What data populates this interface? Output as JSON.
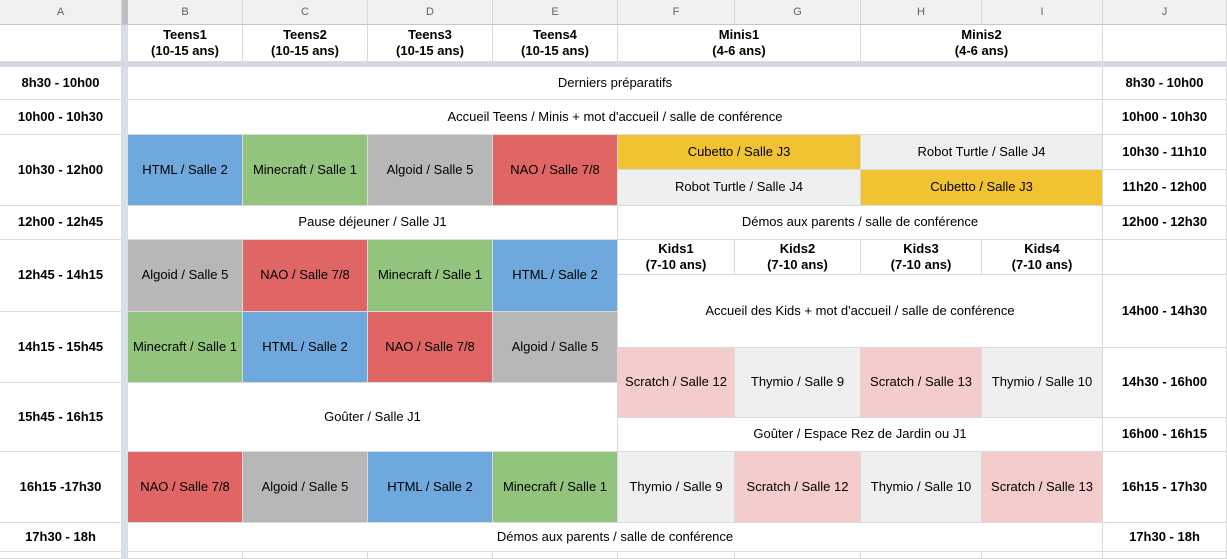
{
  "app": {
    "title": "Planning ateliers — feuille de calcul"
  },
  "column_headers": [
    "A",
    "B",
    "C",
    "D",
    "E",
    "F",
    "G",
    "H",
    "I",
    "J"
  ],
  "palette": {
    "blue": "#6fa8dc",
    "green": "#93c47d",
    "gray": "#b7b7b7",
    "red": "#e06666",
    "yellow": "#f1c232",
    "lightgray": "#efefef",
    "pink": "#f4cccc",
    "white": "#ffffff"
  },
  "cells": [
    {
      "n": "corner-cell-a1",
      "t": "",
      "col": "A",
      "row": 1,
      "rs": 1
    },
    {
      "n": "group-header-teens1",
      "t": "Teens1\n(10-15 ans)",
      "col": "B",
      "row": 1,
      "bold": true
    },
    {
      "n": "group-header-teens2",
      "t": "Teens2\n(10-15 ans)",
      "col": "C",
      "row": 1,
      "bold": true
    },
    {
      "n": "group-header-teens3",
      "t": "Teens3\n(10-15 ans)",
      "col": "D",
      "row": 1,
      "bold": true
    },
    {
      "n": "group-header-teens4",
      "t": "Teens4\n(10-15 ans)",
      "col": "E",
      "row": 1,
      "bold": true
    },
    {
      "n": "group-header-minis1",
      "t": "Minis1\n(4-6 ans)",
      "col": "F",
      "cs": 2,
      "row": 1,
      "bold": true
    },
    {
      "n": "group-header-minis2",
      "t": "Minis2\n(4-6 ans)",
      "col": "H",
      "cs": 2,
      "row": 1,
      "bold": true
    },
    {
      "n": "empty-header-j",
      "t": "",
      "col": "J",
      "row": 1
    },
    {
      "n": "time-left-0830-1000",
      "t": "8h30 - 10h00",
      "col": "A",
      "row": 2,
      "bold": true
    },
    {
      "n": "time-left-1000-1030",
      "t": "10h00 - 10h30",
      "col": "A",
      "row": 3,
      "bold": true
    },
    {
      "n": "time-left-1030-1200",
      "t": "10h30 - 12h00",
      "col": "A",
      "row": 4,
      "rs": 2,
      "bold": true
    },
    {
      "n": "time-left-1200-1245",
      "t": "12h00 - 12h45",
      "col": "A",
      "row": 6,
      "bold": true
    },
    {
      "n": "time-left-1245-1415",
      "t": "12h45 - 14h15",
      "col": "A",
      "row": 7,
      "rs": 2,
      "bold": true
    },
    {
      "n": "time-left-1415-1545",
      "t": "14h15 - 15h45",
      "col": "A",
      "row": 9,
      "rs": 2,
      "bold": true
    },
    {
      "n": "time-left-1545-1615",
      "t": "15h45 - 16h15",
      "col": "A",
      "row": 11,
      "rs": 2,
      "bold": true
    },
    {
      "n": "time-left-1615-1730",
      "t": "16h15 -17h30",
      "col": "A",
      "row": 13,
      "rs": 2,
      "bold": true
    },
    {
      "n": "time-left-1730-18",
      "t": "17h30 - 18h",
      "col": "A",
      "row": 15,
      "bold": true
    },
    {
      "n": "time-right-0830-1000",
      "t": "8h30 - 10h00",
      "col": "J",
      "row": 2,
      "bold": true
    },
    {
      "n": "time-right-1000-1030",
      "t": "10h00 - 10h30",
      "col": "J",
      "row": 3,
      "bold": true
    },
    {
      "n": "time-right-1030-1110",
      "t": "10h30 - 11h10",
      "col": "J",
      "row": 4,
      "bold": true
    },
    {
      "n": "time-right-1120-1200",
      "t": "11h20 - 12h00",
      "col": "J",
      "row": 5,
      "bold": true
    },
    {
      "n": "time-right-1200-1230",
      "t": "12h00 - 12h30",
      "col": "J",
      "row": 6,
      "bold": true
    },
    {
      "n": "empty-cell-j-kids",
      "t": "",
      "col": "J",
      "row": 7
    },
    {
      "n": "time-right-1400-1430",
      "t": "14h00 - 14h30",
      "col": "J",
      "row": 8,
      "rs": 2,
      "bold": true
    },
    {
      "n": "time-right-1430-1600",
      "t": "14h30 - 16h00",
      "col": "J",
      "row": 10,
      "rs": 2,
      "bold": true
    },
    {
      "n": "time-right-1600-1615",
      "t": "16h00 - 16h15",
      "col": "J",
      "row": 12,
      "bold": true
    },
    {
      "n": "time-right-1615-1730",
      "t": "16h15 - 17h30",
      "col": "J",
      "row": 13,
      "rs": 2,
      "bold": true
    },
    {
      "n": "time-right-1730-18",
      "t": "17h30 - 18h",
      "col": "J",
      "row": 15,
      "bold": true
    },
    {
      "n": "event-derniers-preparatifs",
      "t": "Derniers préparatifs",
      "col": "B",
      "cs": 8,
      "row": 2
    },
    {
      "n": "event-accueil-teens-minis",
      "t": "Accueil Teens / Minis + mot d'accueil / salle de conférence",
      "col": "B",
      "cs": 8,
      "row": 3
    },
    {
      "n": "event-html-salle2-teens1",
      "t": "HTML / Salle 2",
      "col": "B",
      "row": 4,
      "rs": 2,
      "bg": "blue"
    },
    {
      "n": "event-minecraft-salle1-teens2",
      "t": "Minecraft / Salle 1",
      "col": "C",
      "row": 4,
      "rs": 2,
      "bg": "green"
    },
    {
      "n": "event-algoid-salle5-teens3",
      "t": "Algoid / Salle 5",
      "col": "D",
      "row": 4,
      "rs": 2,
      "bg": "gray"
    },
    {
      "n": "event-nao-salle78-teens4",
      "t": "NAO / Salle 7/8",
      "col": "E",
      "row": 4,
      "rs": 2,
      "bg": "red"
    },
    {
      "n": "event-cubetto-j3-minis1",
      "t": "Cubetto / Salle J3",
      "col": "F",
      "cs": 2,
      "row": 4,
      "bg": "yellow"
    },
    {
      "n": "event-robot-turtle-j4-minis2",
      "t": "Robot Turtle / Salle J4",
      "col": "H",
      "cs": 2,
      "row": 4,
      "bg": "lightgray"
    },
    {
      "n": "event-robot-turtle-j4-minis1",
      "t": "Robot Turtle / Salle J4",
      "col": "F",
      "cs": 2,
      "row": 5,
      "bg": "lightgray"
    },
    {
      "n": "event-cubetto-j3-minis2",
      "t": "Cubetto / Salle J3",
      "col": "H",
      "cs": 2,
      "row": 5,
      "bg": "yellow"
    },
    {
      "n": "event-pause-dejeuner",
      "t": "Pause déjeuner / Salle J1",
      "col": "B",
      "cs": 4,
      "row": 6
    },
    {
      "n": "event-demos-parents-midi",
      "t": "Démos aux parents / salle de conférence",
      "col": "F",
      "cs": 4,
      "row": 6
    },
    {
      "n": "group-header-kids1",
      "t": "Kids1\n(7-10 ans)",
      "col": "F",
      "row": 7,
      "bold": true
    },
    {
      "n": "group-header-kids2",
      "t": "Kids2\n(7-10 ans)",
      "col": "G",
      "row": 7,
      "bold": true
    },
    {
      "n": "group-header-kids3",
      "t": "Kids3\n(7-10 ans)",
      "col": "H",
      "row": 7,
      "bold": true
    },
    {
      "n": "group-header-kids4",
      "t": "Kids4\n(7-10 ans)",
      "col": "I",
      "row": 7,
      "bold": true
    },
    {
      "n": "event-algoid-salle5-teens1",
      "t": "Algoid / Salle 5",
      "col": "B",
      "row": 7,
      "rs": 2,
      "bg": "gray"
    },
    {
      "n": "event-nao-salle78-teens2",
      "t": "NAO / Salle 7/8",
      "col": "C",
      "row": 7,
      "rs": 2,
      "bg": "red"
    },
    {
      "n": "event-minecraft-salle1-teens3",
      "t": "Minecraft / Salle 1",
      "col": "D",
      "row": 7,
      "rs": 2,
      "bg": "green"
    },
    {
      "n": "event-html-salle2-teens4",
      "t": "HTML / Salle 2",
      "col": "E",
      "row": 7,
      "rs": 2,
      "bg": "blue"
    },
    {
      "n": "event-accueil-kids",
      "t": "Accueil des Kids + mot d'accueil / salle de conférence",
      "col": "F",
      "cs": 4,
      "row": 8,
      "rs": 2
    },
    {
      "n": "event-minecraft-salle1-teens1",
      "t": "Minecraft / Salle 1",
      "col": "B",
      "row": 9,
      "rs": 2,
      "bg": "green"
    },
    {
      "n": "event-html-salle2-teens2",
      "t": "HTML / Salle 2",
      "col": "C",
      "row": 9,
      "rs": 2,
      "bg": "blue"
    },
    {
      "n": "event-nao-salle78-teens3",
      "t": "NAO / Salle 7/8",
      "col": "D",
      "row": 9,
      "rs": 2,
      "bg": "red"
    },
    {
      "n": "event-algoid-salle5-teens4",
      "t": "Algoid / Salle 5",
      "col": "E",
      "row": 9,
      "rs": 2,
      "bg": "gray"
    },
    {
      "n": "event-scratch-salle12-kids1",
      "t": "Scratch / Salle 12",
      "col": "F",
      "row": 10,
      "rs": 2,
      "bg": "pink"
    },
    {
      "n": "event-thymio-salle9-kids2",
      "t": "Thymio / Salle 9",
      "col": "G",
      "row": 10,
      "rs": 2,
      "bg": "lightgray"
    },
    {
      "n": "event-scratch-salle13-kids3",
      "t": "Scratch / Salle 13",
      "col": "H",
      "row": 10,
      "rs": 2,
      "bg": "pink"
    },
    {
      "n": "event-thymio-salle10-kids4",
      "t": "Thymio / Salle 10",
      "col": "I",
      "row": 10,
      "rs": 2,
      "bg": "lightgray"
    },
    {
      "n": "event-gouter-salle-j1",
      "t": "Goûter / Salle J1",
      "col": "B",
      "cs": 4,
      "row": 11,
      "rs": 2
    },
    {
      "n": "event-gouter-rez-de-jardin",
      "t": "Goûter / Espace Rez de Jardin ou J1",
      "col": "F",
      "cs": 4,
      "row": 12
    },
    {
      "n": "event-nao-salle78-teens1",
      "t": "NAO / Salle 7/8",
      "col": "B",
      "row": 13,
      "rs": 2,
      "bg": "red"
    },
    {
      "n": "event-algoid-salle5-teens2",
      "t": "Algoid / Salle 5",
      "col": "C",
      "row": 13,
      "rs": 2,
      "bg": "gray"
    },
    {
      "n": "event-html-salle2-teens3",
      "t": "HTML / Salle 2",
      "col": "D",
      "row": 13,
      "rs": 2,
      "bg": "blue"
    },
    {
      "n": "event-minecraft-salle1-teens4",
      "t": "Minecraft / Salle 1",
      "col": "E",
      "row": 13,
      "rs": 2,
      "bg": "green"
    },
    {
      "n": "event-thymio-salle9-kids1",
      "t": "Thymio / Salle 9",
      "col": "F",
      "row": 13,
      "rs": 2,
      "bg": "lightgray"
    },
    {
      "n": "event-scratch-salle12-kids2",
      "t": "Scratch / Salle 12",
      "col": "G",
      "row": 13,
      "rs": 2,
      "bg": "pink"
    },
    {
      "n": "event-thymio-salle10-kids3",
      "t": "Thymio / Salle 10",
      "col": "H",
      "row": 13,
      "rs": 2,
      "bg": "lightgray"
    },
    {
      "n": "event-scratch-salle13-kids4",
      "t": "Scratch / Salle 13",
      "col": "I",
      "row": 13,
      "rs": 2,
      "bg": "pink"
    },
    {
      "n": "event-demos-parents-soir",
      "t": "Démos aux parents / salle de conférence",
      "col": "B",
      "cs": 8,
      "row": 15
    },
    {
      "n": "empty-cell-a-bottom",
      "t": "",
      "col": "A",
      "row": 16
    },
    {
      "n": "empty-cell-b-bottom",
      "t": "",
      "col": "B",
      "row": 16
    },
    {
      "n": "empty-cell-c-bottom",
      "t": "",
      "col": "C",
      "row": 16
    },
    {
      "n": "empty-cell-d-bottom",
      "t": "",
      "col": "D",
      "row": 16
    },
    {
      "n": "empty-cell-e-bottom",
      "t": "",
      "col": "E",
      "row": 16
    },
    {
      "n": "empty-cell-f-bottom",
      "t": "",
      "col": "F",
      "row": 16
    },
    {
      "n": "empty-cell-g-bottom",
      "t": "",
      "col": "G",
      "row": 16
    },
    {
      "n": "empty-cell-h-bottom",
      "t": "",
      "col": "H",
      "row": 16
    },
    {
      "n": "empty-cell-i-bottom",
      "t": "",
      "col": "I",
      "row": 16
    },
    {
      "n": "empty-cell-j-bottom",
      "t": "",
      "col": "J",
      "row": 16
    }
  ]
}
